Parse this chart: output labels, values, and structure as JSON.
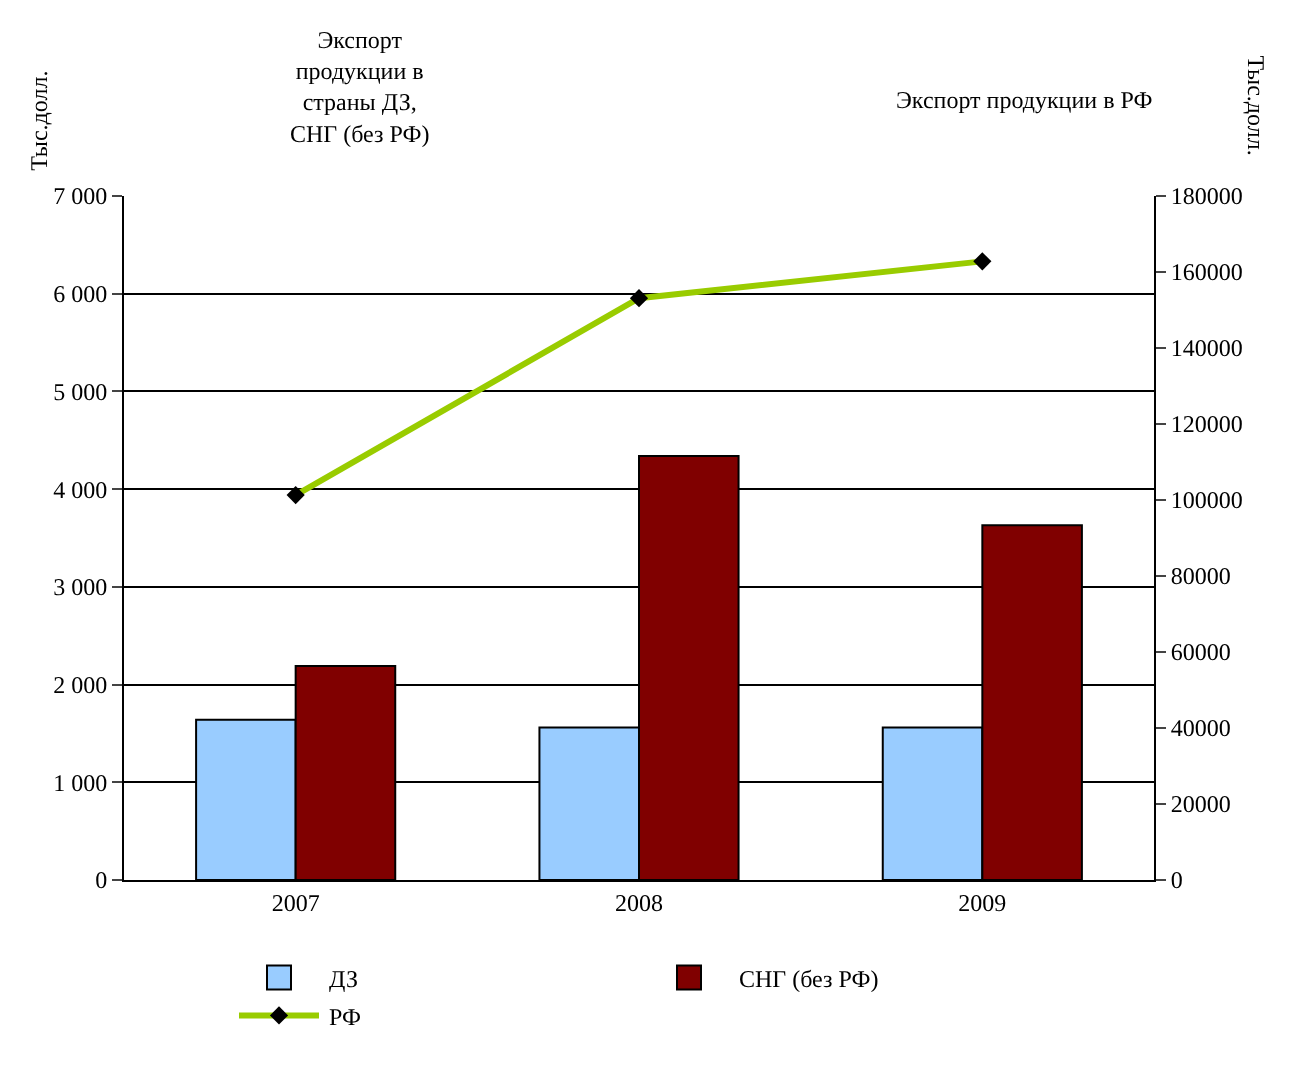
{
  "chart_data": {
    "type": "bar",
    "categories": [
      "2007",
      "2008",
      "2009"
    ],
    "ylabel": "Тыс.долл.",
    "y2label": "Тыс.долл.",
    "annotations": [
      "Экспорт\nпродукции в\nстраны ДЗ,\nСНГ (без РФ)",
      "Экспорт продукции в РФ"
    ],
    "series": [
      {
        "name": "ДЗ",
        "color": "#99ccff",
        "values": [
          1640,
          1560,
          1560
        ]
      },
      {
        "name": "СНГ (без РФ)",
        "color": "#800000",
        "values": [
          2190,
          4340,
          3630
        ]
      },
      {
        "name": "РФ",
        "type": "line",
        "axis": "y2",
        "color": "#99cc00",
        "marker": "diamond",
        "values": [
          101300,
          153100,
          162800
        ]
      }
    ],
    "ylim": [
      0,
      7000
    ],
    "yticks": [
      {
        "value": 0,
        "label": "0"
      },
      {
        "value": 1000,
        "label": "1 000"
      },
      {
        "value": 2000,
        "label": "2 000"
      },
      {
        "value": 3000,
        "label": "3 000"
      },
      {
        "value": 4000,
        "label": "4 000"
      },
      {
        "value": 5000,
        "label": "5 000"
      },
      {
        "value": 6000,
        "label": "6 000"
      },
      {
        "value": 7000,
        "label": "7 000"
      }
    ],
    "y2lim": [
      0,
      180000
    ],
    "y2ticks": [
      0,
      20000,
      40000,
      60000,
      80000,
      100000,
      120000,
      140000,
      160000,
      180000
    ],
    "grid": "y",
    "legend": "bottom"
  }
}
